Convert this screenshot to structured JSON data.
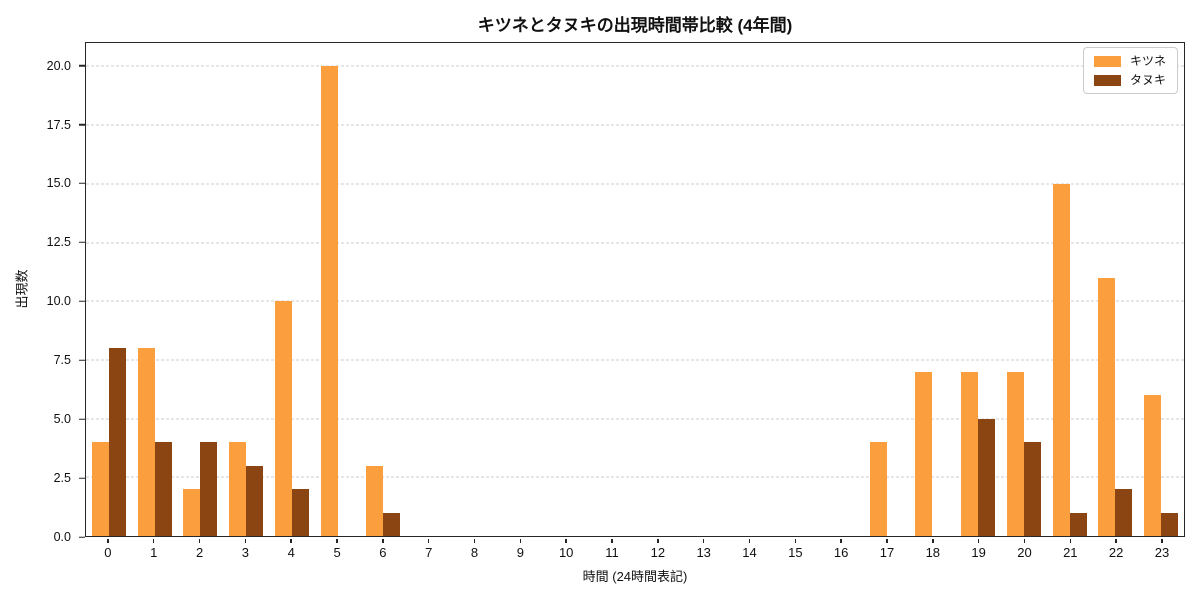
{
  "chart_data": {
    "type": "bar",
    "title": "キツネとタヌキの出現時間帯比較 (4年間)",
    "xlabel": "時間 (24時間表記)",
    "ylabel": "出現数",
    "categories": [
      "0",
      "1",
      "2",
      "3",
      "4",
      "5",
      "6",
      "7",
      "8",
      "9",
      "10",
      "11",
      "12",
      "13",
      "14",
      "15",
      "16",
      "17",
      "18",
      "19",
      "20",
      "21",
      "22",
      "23"
    ],
    "series": [
      {
        "name": "キツネ",
        "id": "kitsune",
        "color": "#FA9E3E",
        "values": [
          4,
          8,
          2,
          4,
          10,
          20,
          3,
          0,
          0,
          0,
          0,
          0,
          0,
          0,
          0,
          0,
          0,
          4,
          7,
          7,
          7,
          15,
          11,
          6
        ]
      },
      {
        "name": "タヌキ",
        "id": "tanuki",
        "color": "#8B4513",
        "values": [
          8,
          4,
          4,
          3,
          2,
          0,
          1,
          0,
          0,
          0,
          0,
          0,
          0,
          0,
          0,
          0,
          0,
          0,
          0,
          5,
          4,
          1,
          2,
          1
        ]
      }
    ],
    "ylim": [
      0,
      21
    ],
    "yticks": [
      "0.0",
      "2.5",
      "5.0",
      "7.5",
      "10.0",
      "12.5",
      "15.0",
      "17.5",
      "20.0"
    ],
    "grid": true,
    "grid_style": "dashed",
    "legend_position": "top-right"
  }
}
